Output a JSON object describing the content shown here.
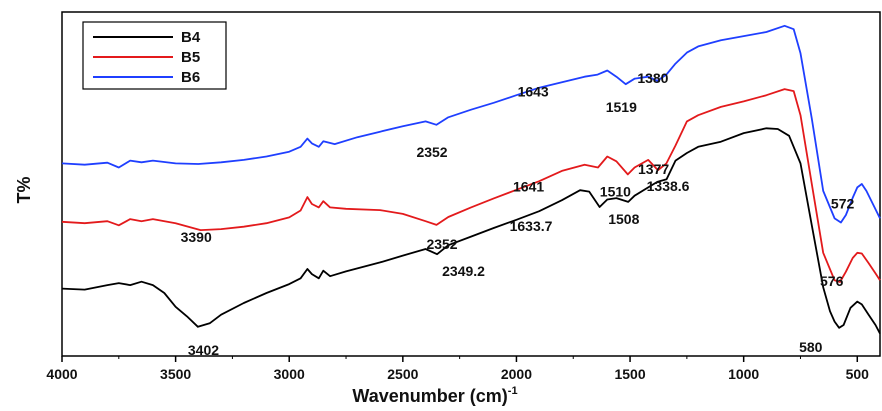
{
  "chart_data": {
    "type": "line",
    "title": "",
    "xlabel": "Wavenumber (cm)",
    "xlabel_sup": "-1",
    "ylabel": "T%",
    "x_reversed": true,
    "xlim": [
      4000,
      400
    ],
    "ylim": [
      0,
      1
    ],
    "x_ticks": [
      4000,
      3500,
      3000,
      2500,
      2000,
      1500,
      1000,
      500
    ],
    "y_ticks_shown": false,
    "grid": false,
    "legend_position": "top-left",
    "series": [
      {
        "name": "B4",
        "color": "#000000",
        "points": [
          [
            4000,
            0.196
          ],
          [
            3900,
            0.193
          ],
          [
            3800,
            0.206
          ],
          [
            3750,
            0.212
          ],
          [
            3700,
            0.206
          ],
          [
            3650,
            0.216
          ],
          [
            3600,
            0.206
          ],
          [
            3550,
            0.183
          ],
          [
            3500,
            0.143
          ],
          [
            3450,
            0.115
          ],
          [
            3402,
            0.085
          ],
          [
            3350,
            0.095
          ],
          [
            3300,
            0.12
          ],
          [
            3200,
            0.154
          ],
          [
            3100,
            0.183
          ],
          [
            3000,
            0.209
          ],
          [
            2950,
            0.226
          ],
          [
            2920,
            0.253
          ],
          [
            2900,
            0.238
          ],
          [
            2870,
            0.226
          ],
          [
            2850,
            0.248
          ],
          [
            2820,
            0.232
          ],
          [
            2750,
            0.246
          ],
          [
            2600,
            0.272
          ],
          [
            2500,
            0.292
          ],
          [
            2400,
            0.311
          ],
          [
            2349,
            0.296
          ],
          [
            2300,
            0.322
          ],
          [
            2200,
            0.347
          ],
          [
            2100,
            0.372
          ],
          [
            2000,
            0.396
          ],
          [
            1900,
            0.421
          ],
          [
            1800,
            0.453
          ],
          [
            1720,
            0.482
          ],
          [
            1680,
            0.478
          ],
          [
            1634,
            0.433
          ],
          [
            1600,
            0.455
          ],
          [
            1560,
            0.459
          ],
          [
            1508,
            0.448
          ],
          [
            1480,
            0.466
          ],
          [
            1420,
            0.49
          ],
          [
            1380,
            0.506
          ],
          [
            1339,
            0.514
          ],
          [
            1300,
            0.568
          ],
          [
            1250,
            0.59
          ],
          [
            1200,
            0.608
          ],
          [
            1100,
            0.623
          ],
          [
            1000,
            0.648
          ],
          [
            900,
            0.662
          ],
          [
            850,
            0.66
          ],
          [
            800,
            0.64
          ],
          [
            750,
            0.56
          ],
          [
            700,
            0.38
          ],
          [
            650,
            0.2
          ],
          [
            620,
            0.13
          ],
          [
            600,
            0.1
          ],
          [
            580,
            0.082
          ],
          [
            560,
            0.09
          ],
          [
            530,
            0.14
          ],
          [
            500,
            0.158
          ],
          [
            480,
            0.15
          ],
          [
            450,
            0.12
          ],
          [
            420,
            0.09
          ],
          [
            400,
            0.065
          ]
        ]
      },
      {
        "name": "B5",
        "color": "#e31a1c",
        "points": [
          [
            4000,
            0.39
          ],
          [
            3900,
            0.386
          ],
          [
            3800,
            0.392
          ],
          [
            3750,
            0.38
          ],
          [
            3700,
            0.398
          ],
          [
            3650,
            0.392
          ],
          [
            3600,
            0.398
          ],
          [
            3500,
            0.386
          ],
          [
            3390,
            0.366
          ],
          [
            3300,
            0.369
          ],
          [
            3200,
            0.376
          ],
          [
            3100,
            0.386
          ],
          [
            3000,
            0.403
          ],
          [
            2950,
            0.423
          ],
          [
            2920,
            0.462
          ],
          [
            2900,
            0.442
          ],
          [
            2870,
            0.432
          ],
          [
            2850,
            0.45
          ],
          [
            2820,
            0.432
          ],
          [
            2750,
            0.428
          ],
          [
            2600,
            0.424
          ],
          [
            2500,
            0.413
          ],
          [
            2400,
            0.392
          ],
          [
            2352,
            0.381
          ],
          [
            2300,
            0.404
          ],
          [
            2200,
            0.432
          ],
          [
            2100,
            0.458
          ],
          [
            2000,
            0.483
          ],
          [
            1900,
            0.508
          ],
          [
            1800,
            0.538
          ],
          [
            1700,
            0.556
          ],
          [
            1641,
            0.548
          ],
          [
            1600,
            0.58
          ],
          [
            1560,
            0.566
          ],
          [
            1510,
            0.528
          ],
          [
            1480,
            0.548
          ],
          [
            1420,
            0.57
          ],
          [
            1377,
            0.54
          ],
          [
            1340,
            0.56
          ],
          [
            1300,
            0.612
          ],
          [
            1250,
            0.682
          ],
          [
            1200,
            0.7
          ],
          [
            1100,
            0.724
          ],
          [
            1000,
            0.74
          ],
          [
            900,
            0.758
          ],
          [
            820,
            0.776
          ],
          [
            780,
            0.77
          ],
          [
            750,
            0.7
          ],
          [
            700,
            0.5
          ],
          [
            650,
            0.3
          ],
          [
            600,
            0.22
          ],
          [
            576,
            0.215
          ],
          [
            550,
            0.245
          ],
          [
            520,
            0.285
          ],
          [
            500,
            0.3
          ],
          [
            480,
            0.298
          ],
          [
            450,
            0.27
          ],
          [
            420,
            0.24
          ],
          [
            400,
            0.22
          ]
        ]
      },
      {
        "name": "B6",
        "color": "#1f3fff",
        "points": [
          [
            4000,
            0.56
          ],
          [
            3900,
            0.556
          ],
          [
            3800,
            0.562
          ],
          [
            3750,
            0.548
          ],
          [
            3700,
            0.568
          ],
          [
            3650,
            0.563
          ],
          [
            3600,
            0.568
          ],
          [
            3500,
            0.56
          ],
          [
            3400,
            0.558
          ],
          [
            3300,
            0.563
          ],
          [
            3200,
            0.57
          ],
          [
            3100,
            0.58
          ],
          [
            3000,
            0.594
          ],
          [
            2950,
            0.608
          ],
          [
            2920,
            0.632
          ],
          [
            2900,
            0.618
          ],
          [
            2870,
            0.608
          ],
          [
            2850,
            0.624
          ],
          [
            2800,
            0.616
          ],
          [
            2700,
            0.636
          ],
          [
            2600,
            0.652
          ],
          [
            2500,
            0.668
          ],
          [
            2400,
            0.682
          ],
          [
            2352,
            0.672
          ],
          [
            2300,
            0.694
          ],
          [
            2200,
            0.716
          ],
          [
            2100,
            0.736
          ],
          [
            2000,
            0.758
          ],
          [
            1900,
            0.78
          ],
          [
            1800,
            0.796
          ],
          [
            1700,
            0.812
          ],
          [
            1643,
            0.818
          ],
          [
            1600,
            0.83
          ],
          [
            1560,
            0.812
          ],
          [
            1519,
            0.79
          ],
          [
            1480,
            0.806
          ],
          [
            1420,
            0.812
          ],
          [
            1380,
            0.8
          ],
          [
            1340,
            0.818
          ],
          [
            1300,
            0.85
          ],
          [
            1250,
            0.882
          ],
          [
            1200,
            0.9
          ],
          [
            1100,
            0.918
          ],
          [
            1000,
            0.93
          ],
          [
            900,
            0.942
          ],
          [
            820,
            0.96
          ],
          [
            780,
            0.95
          ],
          [
            750,
            0.88
          ],
          [
            700,
            0.69
          ],
          [
            650,
            0.48
          ],
          [
            600,
            0.4
          ],
          [
            572,
            0.388
          ],
          [
            550,
            0.41
          ],
          [
            520,
            0.46
          ],
          [
            500,
            0.49
          ],
          [
            480,
            0.5
          ],
          [
            460,
            0.48
          ],
          [
            430,
            0.44
          ],
          [
            400,
            0.4
          ]
        ]
      }
    ],
    "annotations": [
      {
        "text": "3402",
        "x": 3402,
        "y": 0.085,
        "dx": -10,
        "dy": 28
      },
      {
        "text": "2349.2",
        "x": 2349,
        "y": 0.296,
        "dx": 5,
        "dy": 22
      },
      {
        "text": "1633.7",
        "x": 1634,
        "y": 0.433,
        "dx": -90,
        "dy": 24
      },
      {
        "text": "1508",
        "x": 1508,
        "y": 0.448,
        "dx": -20,
        "dy": 22
      },
      {
        "text": "1338.6",
        "x": 1339,
        "y": 0.514,
        "dx": -20,
        "dy": 12
      },
      {
        "text": "580",
        "x": 580,
        "y": 0.082,
        "dx": -40,
        "dy": 24
      },
      {
        "text": "3390",
        "x": 3390,
        "y": 0.366,
        "dx": -20,
        "dy": 12
      },
      {
        "text": "2352",
        "x": 2352,
        "y": 0.381,
        "dx": -10,
        "dy": 24
      },
      {
        "text": "1641",
        "x": 1641,
        "y": 0.548,
        "dx": -85,
        "dy": 24
      },
      {
        "text": "1510",
        "x": 1510,
        "y": 0.528,
        "dx": -28,
        "dy": 22
      },
      {
        "text": "1377",
        "x": 1377,
        "y": 0.54,
        "dx": -20,
        "dy": 4
      },
      {
        "text": "576",
        "x": 576,
        "y": 0.215,
        "dx": -20,
        "dy": 4
      },
      {
        "text": "1643",
        "x": 1643,
        "y": 0.818,
        "dx": -80,
        "dy": 22
      },
      {
        "text": "1519",
        "x": 1519,
        "y": 0.79,
        "dx": -20,
        "dy": 28
      },
      {
        "text": "1380",
        "x": 1380,
        "y": 0.8,
        "dx": -20,
        "dy": 2
      },
      {
        "text": "2352",
        "x": 2352,
        "y": 0.672,
        "dx": -20,
        "dy": 32
      },
      {
        "text": "572",
        "x": 572,
        "y": 0.388,
        "dx": -10,
        "dy": -14
      }
    ]
  }
}
